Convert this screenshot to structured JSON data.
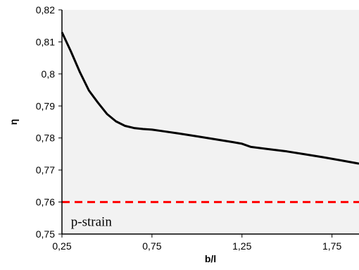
{
  "chart_data": {
    "type": "line",
    "xlabel": "b/l",
    "ylabel": "η",
    "xlim": [
      0.25,
      1.9
    ],
    "ylim": [
      0.75,
      0.82
    ],
    "xticks": [
      0.25,
      0.75,
      1.25,
      1.75
    ],
    "xtick_labels": [
      "0,25",
      "0,75",
      "1,25",
      "1,75"
    ],
    "yticks": [
      0.75,
      0.76,
      0.77,
      0.78,
      0.79,
      0.8,
      0.81,
      0.82
    ],
    "ytick_labels": [
      "0,75",
      "0,76",
      "0,77",
      "0,78",
      "0,79",
      "0,8",
      "0,81",
      "0,82"
    ],
    "grid": false,
    "plot_background": "#f2f2f2",
    "series": [
      {
        "color": "#000000",
        "style": "solid",
        "x": [
          0.25,
          0.3,
          0.35,
          0.4,
          0.45,
          0.5,
          0.55,
          0.6,
          0.65,
          0.7,
          0.75,
          0.8,
          0.9,
          1.0,
          1.1,
          1.2,
          1.25,
          1.3,
          1.4,
          1.5,
          1.6,
          1.7,
          1.8,
          1.9
        ],
        "y": [
          0.813,
          0.807,
          0.8005,
          0.7948,
          0.791,
          0.7875,
          0.7852,
          0.7838,
          0.7831,
          0.7828,
          0.7826,
          0.7822,
          0.7814,
          0.7805,
          0.7796,
          0.7787,
          0.7782,
          0.7772,
          0.7765,
          0.7758,
          0.7749,
          0.774,
          0.773,
          0.772
        ]
      },
      {
        "color": "#ff0000",
        "style": "dashed",
        "x": [
          0.25,
          1.9
        ],
        "y": [
          0.76,
          0.76
        ]
      }
    ],
    "annotations": [
      {
        "text": "p-strain",
        "x": 0.3,
        "y": 0.7525
      }
    ]
  }
}
